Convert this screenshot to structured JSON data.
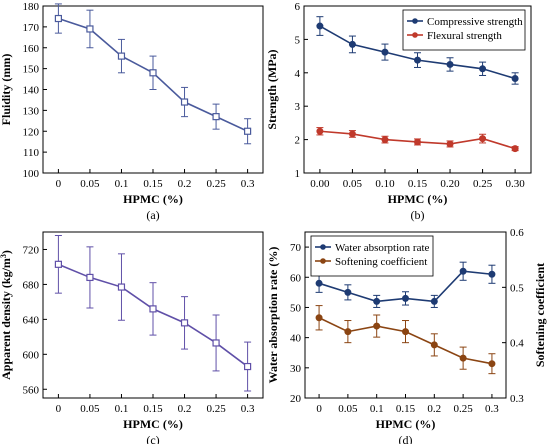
{
  "chart_data": [
    {
      "panel_label": "(a)",
      "type": "line",
      "xlabel": "HPMC (%)",
      "ylabel": "Fluidity (mm)",
      "x": [
        "0",
        "0.05",
        "0.1",
        "0.15",
        "0.2",
        "0.25",
        "0.3"
      ],
      "ylim": [
        100,
        180
      ],
      "yticks": [
        100,
        110,
        120,
        130,
        140,
        150,
        160,
        170,
        180
      ],
      "series": [
        {
          "values": [
            174,
            169,
            156,
            148,
            134,
            127,
            120
          ],
          "errors": [
            7,
            9,
            8,
            8,
            7,
            6,
            6
          ],
          "color": "#4a5a9c",
          "marker": "square-open"
        }
      ]
    },
    {
      "panel_label": "(b)",
      "type": "line",
      "xlabel": "HPMC (%)",
      "ylabel": "Strength (MPa)",
      "x": [
        "0.00",
        "0.05",
        "0.10",
        "0.15",
        "0.20",
        "0.25",
        "0.30"
      ],
      "ylim": [
        1,
        6
      ],
      "yticks": [
        1,
        2,
        3,
        4,
        5,
        6
      ],
      "legend_position": "top-right",
      "series": [
        {
          "name": "Compressive strength",
          "values": [
            5.4,
            4.85,
            4.62,
            4.38,
            4.25,
            4.12,
            3.83
          ],
          "errors": [
            0.28,
            0.25,
            0.24,
            0.22,
            0.2,
            0.2,
            0.17
          ],
          "color": "#1e3b73",
          "marker": "circle"
        },
        {
          "name": "Flexural strength",
          "values": [
            2.25,
            2.17,
            2.0,
            1.93,
            1.87,
            2.03,
            1.73
          ],
          "errors": [
            0.11,
            0.1,
            0.1,
            0.09,
            0.09,
            0.13,
            0.06
          ],
          "color": "#c0392b",
          "marker": "circle"
        }
      ]
    },
    {
      "panel_label": "(c)",
      "type": "line",
      "xlabel": "HPMC (%)",
      "ylabel": "Apparent density (kg/m",
      "ylabel_sup": "3",
      "ylabel_end": ")",
      "x": [
        "0",
        "0.05",
        "0.1",
        "0.15",
        "0.2",
        "0.25",
        "0.3"
      ],
      "ylim": [
        550,
        740
      ],
      "yticks": [
        560,
        600,
        640,
        680,
        720
      ],
      "series": [
        {
          "values": [
            703,
            688,
            677,
            652,
            636,
            613,
            586
          ],
          "errors": [
            33,
            35,
            38,
            30,
            30,
            32,
            28
          ],
          "color": "#6050a8",
          "marker": "square-open"
        }
      ]
    },
    {
      "panel_label": "(d)",
      "type": "line",
      "xlabel": "HPMC (%)",
      "ylabel": "Water absorption rate (%)",
      "ylabel_right": "Softening coefficient",
      "x": [
        "0",
        "0.05",
        "0.1",
        "0.15",
        "0.2",
        "0.25",
        "0.3"
      ],
      "ylim": [
        20,
        75
      ],
      "yticks": [
        20,
        30,
        40,
        50,
        60,
        70
      ],
      "ylim_right": [
        0.3,
        0.6
      ],
      "yticks_right": [
        0.3,
        0.4,
        0.5,
        0.6
      ],
      "legend_position": "top-left",
      "series": [
        {
          "name": "Water absorption rate",
          "axis": "left",
          "values": [
            58,
            55,
            52,
            53,
            52,
            62,
            61
          ],
          "errors": [
            3,
            2.5,
            2,
            2.2,
            2,
            3,
            3
          ],
          "color": "#1e3b73",
          "marker": "circle"
        },
        {
          "name": "Softening coefficient",
          "axis": "right",
          "values": [
            0.445,
            0.42,
            0.43,
            0.42,
            0.396,
            0.372,
            0.362
          ],
          "errors": [
            0.022,
            0.02,
            0.02,
            0.02,
            0.02,
            0.02,
            0.018
          ],
          "color": "#8b4513",
          "marker": "circle"
        }
      ]
    }
  ]
}
